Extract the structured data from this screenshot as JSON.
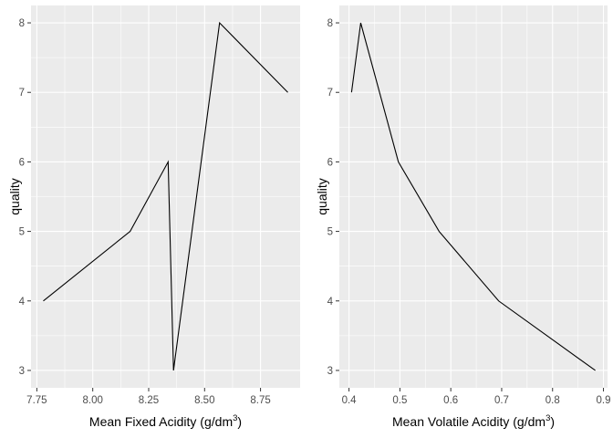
{
  "chart_data": [
    {
      "type": "line",
      "xlabel": "Mean Fixed Acidity (g/dm3)",
      "xlabel_main": "Mean Fixed Acidity (g",
      "xlabel_unit": "dm",
      "xlabel_exp": "3",
      "xlabel_close": ")",
      "ylabel": "quality",
      "x": [
        7.779,
        8.167,
        8.337,
        8.361,
        8.567,
        8.872
      ],
      "y": [
        4,
        5,
        6,
        3,
        8,
        7
      ],
      "xlim": [
        7.724,
        8.927
      ],
      "ylim": [
        2.75,
        8.25
      ],
      "xticks": [
        7.75,
        8.0,
        8.25,
        8.5,
        8.75
      ],
      "xtick_labels": [
        "7.75",
        "8.00",
        "8.25",
        "8.50",
        "8.75"
      ],
      "yticks": [
        3,
        4,
        5,
        6,
        7,
        8
      ],
      "ytick_labels": [
        "3",
        "4",
        "5",
        "6",
        "7",
        "8"
      ],
      "grid": true
    },
    {
      "type": "line",
      "xlabel": "Mean Volatile Acidity (g/dm3)",
      "xlabel_main": "Mean Volatile Acidity (g",
      "xlabel_unit": "dm",
      "xlabel_exp": "3",
      "xlabel_close": ")",
      "ylabel": "quality",
      "x": [
        0.405,
        0.423,
        0.497,
        0.577,
        0.694,
        0.884
      ],
      "y": [
        7,
        8,
        6,
        5,
        4,
        3
      ],
      "xlim": [
        0.381,
        0.908
      ],
      "ylim": [
        2.75,
        8.25
      ],
      "xticks": [
        0.4,
        0.5,
        0.6,
        0.7,
        0.8,
        0.9
      ],
      "xtick_labels": [
        "0.4",
        "0.5",
        "0.6",
        "0.7",
        "0.8",
        "0.9"
      ],
      "yticks": [
        3,
        4,
        5,
        6,
        7,
        8
      ],
      "ytick_labels": [
        "3",
        "4",
        "5",
        "6",
        "7",
        "8"
      ],
      "grid": true
    }
  ]
}
